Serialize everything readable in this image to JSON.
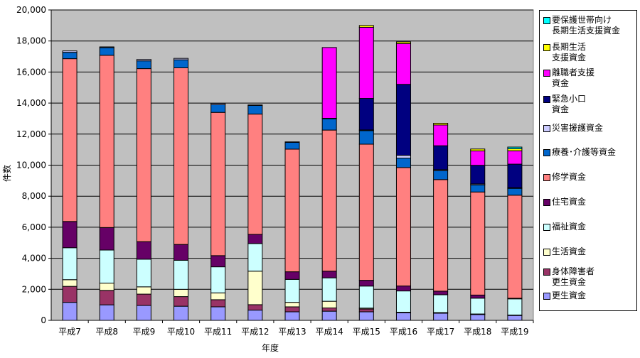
{
  "chart_data": {
    "type": "bar",
    "stacked": true,
    "title": "",
    "xlabel": "年度",
    "ylabel": "件数",
    "ylim": [
      0,
      20000
    ],
    "yticks": [
      "0",
      "2,000",
      "4,000",
      "6,000",
      "8,000",
      "10,000",
      "12,000",
      "14,000",
      "16,000",
      "18,000",
      "20,000"
    ],
    "grid": true,
    "legend_position": "right",
    "categories": [
      "平成7",
      "平成8",
      "平成9",
      "平成10",
      "平成11",
      "平成12",
      "平成13",
      "平成14",
      "平成15",
      "平成16",
      "平成17",
      "平成18",
      "平成19"
    ],
    "series": [
      {
        "name": "更生資金",
        "color": "#9999FF",
        "values": [
          1160,
          1000,
          960,
          910,
          870,
          660,
          550,
          590,
          550,
          500,
          460,
          380,
          320
        ]
      },
      {
        "name": "身体障害者\n更生資金",
        "color": "#993366",
        "values": [
          1030,
          930,
          730,
          620,
          460,
          350,
          320,
          210,
          180,
          15,
          30,
          20,
          15
        ]
      },
      {
        "name": "生活資金",
        "color": "#FFFFCC",
        "values": [
          430,
          470,
          470,
          470,
          440,
          2160,
          290,
          430,
          60,
          10,
          10,
          10,
          10
        ]
      },
      {
        "name": "福祉資金",
        "color": "#CCFFFF",
        "values": [
          2060,
          2130,
          1780,
          1870,
          1680,
          1780,
          1480,
          1510,
          1420,
          1370,
          1150,
          1020,
          1040
        ]
      },
      {
        "name": "住宅資金",
        "color": "#660066",
        "values": [
          1690,
          1450,
          1130,
          1020,
          720,
          590,
          490,
          430,
          370,
          320,
          230,
          200,
          40
        ]
      },
      {
        "name": "修学資金",
        "color": "#FF8080",
        "values": [
          10490,
          11100,
          11150,
          11380,
          9230,
          7750,
          7900,
          9090,
          8770,
          7630,
          7190,
          6640,
          6640
        ]
      },
      {
        "name": "療養･介護等資金",
        "color": "#0066CC",
        "values": [
          410,
          490,
          500,
          520,
          500,
          560,
          440,
          730,
          870,
          610,
          580,
          460,
          440
        ]
      },
      {
        "name": "災害援護資金",
        "color": "#CCCCFF",
        "values": [
          90,
          50,
          90,
          90,
          80,
          30,
          30,
          30,
          50,
          180,
          60,
          60,
          40
        ]
      },
      {
        "name": "緊急小口\n資金",
        "color": "#000080",
        "values": [
          0,
          0,
          0,
          0,
          0,
          0,
          0,
          0,
          2030,
          4570,
          1540,
          1200,
          1520
        ]
      },
      {
        "name": "離職者支援\n資金",
        "color": "#FF00FF",
        "values": [
          0,
          0,
          0,
          0,
          0,
          0,
          0,
          4560,
          4580,
          2630,
          1340,
          930,
          860
        ]
      },
      {
        "name": "長期生活\n支援資金",
        "color": "#FFFF00",
        "values": [
          0,
          0,
          0,
          0,
          0,
          0,
          0,
          0,
          120,
          110,
          110,
          120,
          130
        ]
      },
      {
        "name": "要保護世帯向け\n長期生活支援資金",
        "color": "#00FFFF",
        "values": [
          0,
          0,
          0,
          0,
          0,
          0,
          0,
          0,
          0,
          0,
          0,
          0,
          110
        ]
      }
    ]
  }
}
